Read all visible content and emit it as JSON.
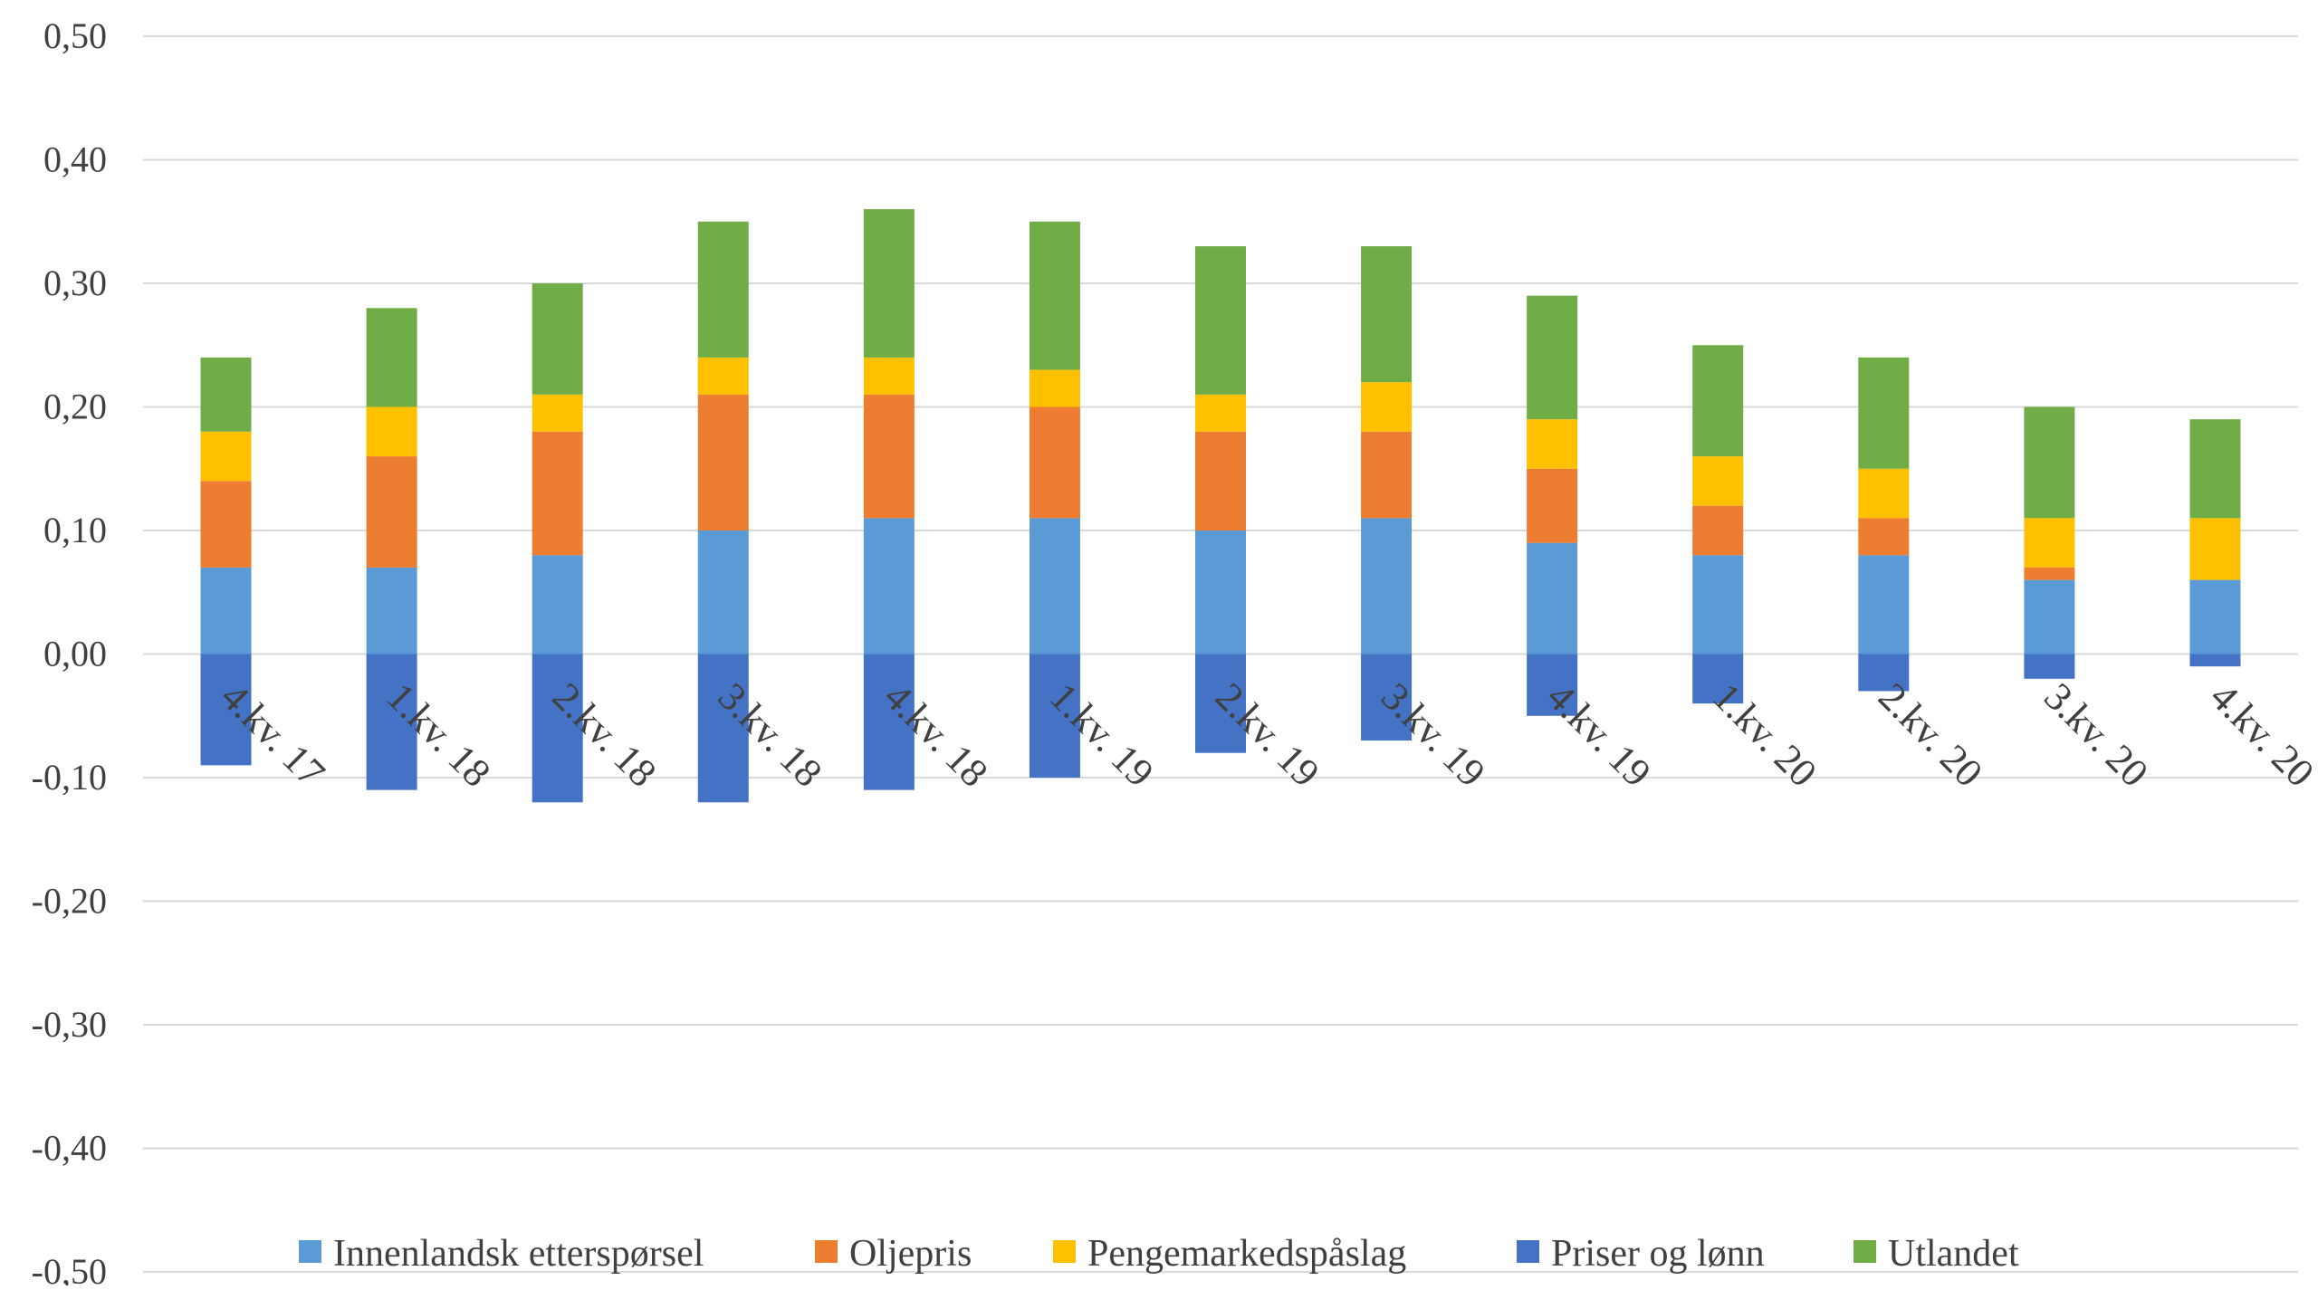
{
  "chart_data": {
    "type": "bar",
    "stacked": true,
    "categories": [
      "4.kv. 17",
      "1.kv. 18",
      "2.kv. 18",
      "3.kv. 18",
      "4.kv. 18",
      "1.kv. 19",
      "2.kv. 19",
      "3.kv. 19",
      "4.kv. 19",
      "1.kv. 20",
      "2.kv. 20",
      "3.kv. 20",
      "4.kv. 20"
    ],
    "series": [
      {
        "name": "Innenlandsk etterspørsel",
        "color": "#5B9BD5",
        "values": [
          0.07,
          0.07,
          0.08,
          0.1,
          0.11,
          0.11,
          0.1,
          0.11,
          0.09,
          0.08,
          0.08,
          0.06,
          0.06
        ]
      },
      {
        "name": "Oljepris",
        "color": "#ED7D31",
        "values": [
          0.07,
          0.09,
          0.1,
          0.11,
          0.1,
          0.09,
          0.08,
          0.07,
          0.06,
          0.04,
          0.03,
          0.01,
          0.0
        ]
      },
      {
        "name": "Pengemarkedspåslag",
        "color": "#FFC000",
        "values": [
          0.04,
          0.04,
          0.03,
          0.03,
          0.03,
          0.03,
          0.03,
          0.04,
          0.04,
          0.04,
          0.04,
          0.04,
          0.05
        ]
      },
      {
        "name": "Priser og lønn",
        "color": "#4472C4",
        "values": [
          -0.09,
          -0.11,
          -0.12,
          -0.12,
          -0.11,
          -0.1,
          -0.08,
          -0.07,
          -0.05,
          -0.04,
          -0.03,
          -0.02,
          -0.01
        ]
      },
      {
        "name": "Utlandet",
        "color": "#70AD47",
        "values": [
          0.06,
          0.08,
          0.09,
          0.11,
          0.12,
          0.12,
          0.12,
          0.11,
          0.1,
          0.09,
          0.09,
          0.09,
          0.08
        ]
      }
    ],
    "ylim": [
      -0.5,
      0.5
    ],
    "yticks": [
      0.5,
      0.4,
      0.3,
      0.2,
      0.1,
      0.0,
      -0.1,
      -0.2,
      -0.3,
      -0.4,
      -0.5
    ],
    "ytick_labels": [
      "0,50",
      "0,40",
      "0,30",
      "0,20",
      "0,10",
      "0,00",
      "-0,10",
      "-0,20",
      "-0,30",
      "-0,40",
      "-0,50"
    ],
    "title": "",
    "xlabel": "",
    "ylabel": "",
    "grid": true,
    "legend_position": "bottom",
    "gridline_color": "#D9D9D9",
    "text_color": "#404040"
  }
}
